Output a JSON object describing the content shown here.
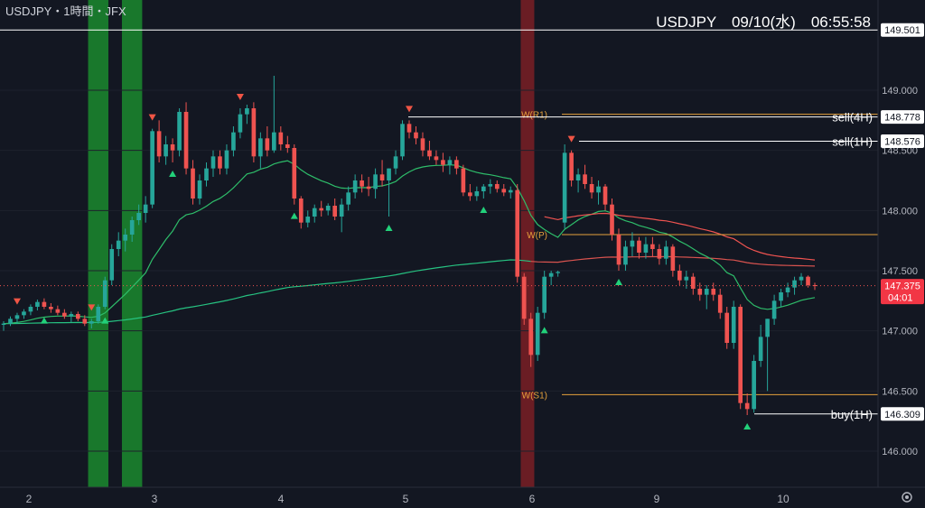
{
  "header": {
    "symbol_info": "USDJPY・1時間・JFX",
    "clock": "USDJPY　09/10(水)　06:55:58"
  },
  "colors": {
    "background": "#131722",
    "up": "#26a69a",
    "down": "#ef5350",
    "ema_fast": "#ef5350",
    "ema_mid": "#2ebd6a",
    "ema_slow": "#26c281",
    "ema_slow_red": "#d9534f",
    "pivot": "#e6a23c",
    "green_zone": "#1b8a2e",
    "red_zone": "#7a1f24",
    "axis_text": "#b2b5be",
    "label_bg": "#ffffff",
    "price_label_bg": "#f23645"
  },
  "chart_data": {
    "type": "candlestick",
    "y_axis": {
      "range": [
        145.7,
        149.75
      ],
      "ticks": [
        "149.000",
        "148.500",
        "148.000",
        "147.500",
        "147.000",
        "146.500",
        "146.000"
      ],
      "tick_values": [
        149.0,
        148.5,
        148.0,
        147.5,
        147.0,
        146.5,
        146.0
      ]
    },
    "x_axis": {
      "tick_labels": [
        "2",
        "3",
        "4",
        "5",
        "6",
        "9",
        "10"
      ]
    },
    "price_labels": [
      {
        "text": "149.501",
        "value": 149.501,
        "style": "white"
      },
      {
        "text": "148.778",
        "value": 148.778,
        "style": "white"
      },
      {
        "text": "148.576",
        "value": 148.576,
        "style": "white"
      },
      {
        "text": "147.375",
        "value": 147.375,
        "style": "red",
        "countdown": "04:01"
      },
      {
        "text": "146.309",
        "value": 146.309,
        "style": "white"
      }
    ],
    "level_labels": [
      {
        "text": "sell(4H)",
        "value": 148.778
      },
      {
        "text": "sell(1H)",
        "value": 148.576
      },
      {
        "text": "buy(1H)",
        "value": 146.309
      }
    ],
    "pivots": [
      {
        "text": "W(R1)",
        "value": 148.8
      },
      {
        "text": "W(P)",
        "value": 147.8
      },
      {
        "text": "W(S1)",
        "value": 146.47
      }
    ],
    "candles": [
      [
        147.05,
        147.08,
        147.0,
        147.06
      ],
      [
        147.06,
        147.12,
        147.04,
        147.1
      ],
      [
        147.1,
        147.15,
        147.06,
        147.13
      ],
      [
        147.13,
        147.18,
        147.1,
        147.16
      ],
      [
        147.16,
        147.22,
        147.13,
        147.2
      ],
      [
        147.2,
        147.26,
        147.17,
        147.24
      ],
      [
        147.24,
        147.27,
        147.18,
        147.2
      ],
      [
        147.2,
        147.23,
        147.15,
        147.18
      ],
      [
        147.18,
        147.21,
        147.13,
        147.15
      ],
      [
        147.15,
        147.18,
        147.1,
        147.12
      ],
      [
        147.12,
        147.16,
        147.07,
        147.14
      ],
      [
        147.14,
        147.16,
        147.08,
        147.1
      ],
      [
        147.1,
        147.13,
        147.04,
        147.06
      ],
      [
        147.06,
        147.1,
        147.02,
        147.08
      ],
      [
        147.08,
        147.22,
        147.06,
        147.2
      ],
      [
        147.2,
        147.45,
        147.18,
        147.42
      ],
      [
        147.42,
        147.72,
        147.38,
        147.68
      ],
      [
        147.68,
        147.82,
        147.62,
        147.75
      ],
      [
        147.75,
        147.85,
        147.66,
        147.8
      ],
      [
        147.8,
        147.95,
        147.74,
        147.92
      ],
      [
        147.92,
        148.05,
        147.88,
        147.98
      ],
      [
        147.98,
        148.12,
        147.9,
        148.05
      ],
      [
        148.05,
        148.68,
        148.02,
        148.66
      ],
      [
        148.66,
        148.75,
        148.4,
        148.45
      ],
      [
        148.45,
        148.62,
        148.38,
        148.55
      ],
      [
        148.55,
        148.6,
        148.4,
        148.5
      ],
      [
        148.5,
        148.85,
        148.45,
        148.82
      ],
      [
        148.82,
        148.9,
        148.3,
        148.35
      ],
      [
        148.35,
        148.42,
        148.05,
        148.1
      ],
      [
        148.1,
        148.3,
        148.05,
        148.25
      ],
      [
        148.25,
        148.4,
        148.2,
        148.35
      ],
      [
        148.35,
        148.5,
        148.28,
        148.45
      ],
      [
        148.45,
        148.5,
        148.3,
        148.35
      ],
      [
        148.35,
        148.55,
        148.3,
        148.5
      ],
      [
        148.5,
        148.7,
        148.45,
        148.65
      ],
      [
        148.65,
        148.85,
        148.6,
        148.8
      ],
      [
        148.8,
        148.88,
        148.72,
        148.85
      ],
      [
        148.85,
        148.9,
        148.4,
        148.45
      ],
      [
        148.45,
        148.65,
        148.35,
        148.6
      ],
      [
        148.6,
        148.7,
        148.45,
        148.5
      ],
      [
        148.5,
        149.12,
        148.48,
        148.65
      ],
      [
        148.65,
        148.7,
        148.5,
        148.55
      ],
      [
        148.55,
        148.62,
        148.48,
        148.52
      ],
      [
        148.52,
        148.55,
        148.05,
        148.1
      ],
      [
        148.1,
        148.12,
        147.85,
        147.9
      ],
      [
        147.9,
        148.0,
        147.86,
        147.95
      ],
      [
        147.95,
        148.05,
        147.9,
        148.02
      ],
      [
        148.02,
        148.08,
        147.95,
        148.0
      ],
      [
        148.0,
        148.06,
        147.96,
        148.04
      ],
      [
        148.04,
        148.1,
        147.92,
        147.95
      ],
      [
        147.95,
        148.1,
        147.82,
        148.05
      ],
      [
        148.05,
        148.2,
        148.0,
        148.15
      ],
      [
        148.15,
        148.3,
        148.1,
        148.25
      ],
      [
        148.25,
        148.3,
        148.15,
        148.2
      ],
      [
        148.2,
        148.28,
        148.12,
        148.18
      ],
      [
        148.18,
        148.35,
        148.1,
        148.3
      ],
      [
        148.3,
        148.42,
        148.2,
        148.25
      ],
      [
        148.25,
        148.35,
        147.95,
        148.35
      ],
      [
        148.35,
        148.5,
        148.3,
        148.45
      ],
      [
        148.45,
        148.75,
        148.42,
        148.72
      ],
      [
        148.72,
        148.75,
        148.6,
        148.65
      ],
      [
        148.65,
        148.7,
        148.55,
        148.6
      ],
      [
        148.6,
        148.65,
        148.45,
        148.5
      ],
      [
        148.5,
        148.58,
        148.42,
        148.45
      ],
      [
        148.45,
        148.5,
        148.38,
        148.42
      ],
      [
        148.42,
        148.48,
        148.32,
        148.38
      ],
      [
        148.38,
        148.45,
        148.3,
        148.42
      ],
      [
        148.42,
        148.45,
        148.3,
        148.35
      ],
      [
        148.35,
        148.38,
        148.12,
        148.15
      ],
      [
        148.15,
        148.22,
        148.08,
        148.12
      ],
      [
        148.12,
        148.2,
        148.08,
        148.16
      ],
      [
        148.16,
        148.22,
        148.1,
        148.2
      ],
      [
        148.2,
        148.26,
        148.14,
        148.22
      ],
      [
        148.22,
        148.25,
        148.15,
        148.18
      ],
      [
        148.18,
        148.22,
        148.12,
        148.15
      ],
      [
        148.15,
        148.2,
        148.1,
        148.17
      ],
      [
        148.17,
        148.22,
        147.4,
        147.45
      ],
      [
        147.45,
        147.48,
        147.05,
        147.1
      ],
      [
        147.1,
        147.15,
        146.7,
        146.8
      ],
      [
        146.8,
        147.2,
        146.75,
        147.15
      ],
      [
        147.15,
        147.5,
        147.1,
        147.45
      ],
      [
        147.45,
        147.5,
        147.38,
        147.48
      ],
      [
        147.48,
        147.5,
        147.45,
        147.49
      ],
      [
        147.9,
        148.55,
        147.85,
        148.48
      ],
      [
        148.48,
        148.5,
        148.2,
        148.25
      ],
      [
        148.25,
        148.35,
        148.15,
        148.3
      ],
      [
        148.3,
        148.38,
        148.18,
        148.22
      ],
      [
        148.22,
        148.28,
        148.1,
        148.15
      ],
      [
        148.15,
        148.25,
        148.05,
        148.2
      ],
      [
        148.2,
        148.22,
        148.0,
        148.05
      ],
      [
        148.05,
        148.1,
        147.75,
        147.8
      ],
      [
        147.8,
        147.85,
        147.5,
        147.55
      ],
      [
        147.55,
        147.75,
        147.5,
        147.7
      ],
      [
        147.7,
        147.82,
        147.62,
        147.75
      ],
      [
        147.75,
        147.78,
        147.6,
        147.65
      ],
      [
        147.65,
        147.78,
        147.6,
        147.72
      ],
      [
        147.72,
        147.78,
        147.62,
        147.68
      ],
      [
        147.68,
        147.72,
        147.55,
        147.6
      ],
      [
        147.6,
        147.75,
        147.55,
        147.7
      ],
      [
        147.7,
        147.72,
        147.45,
        147.5
      ],
      [
        147.5,
        147.55,
        147.38,
        147.42
      ],
      [
        147.42,
        147.5,
        147.35,
        147.45
      ],
      [
        147.45,
        147.48,
        147.3,
        147.35
      ],
      [
        147.35,
        147.4,
        147.25,
        147.3
      ],
      [
        147.3,
        147.38,
        147.18,
        147.35
      ],
      [
        147.35,
        147.4,
        147.25,
        147.3
      ],
      [
        147.3,
        147.35,
        147.1,
        147.15
      ],
      [
        147.15,
        147.2,
        146.85,
        146.9
      ],
      [
        146.9,
        147.25,
        146.85,
        147.2
      ],
      [
        147.2,
        147.22,
        146.35,
        146.4
      ],
      [
        146.4,
        146.48,
        146.3,
        146.35
      ],
      [
        146.35,
        146.8,
        146.32,
        146.75
      ],
      [
        146.75,
        147.05,
        146.7,
        146.95
      ],
      [
        146.95,
        147.1,
        146.5,
        147.1
      ],
      [
        147.1,
        147.3,
        147.05,
        147.25
      ],
      [
        147.25,
        147.35,
        147.2,
        147.32
      ],
      [
        147.32,
        147.4,
        147.28,
        147.36
      ],
      [
        147.36,
        147.45,
        147.3,
        147.42
      ],
      [
        147.42,
        147.48,
        147.38,
        147.45
      ],
      [
        147.45,
        147.46,
        147.36,
        147.38
      ],
      [
        147.38,
        147.4,
        147.34,
        147.375
      ]
    ],
    "arrows_up": [
      6,
      15,
      25,
      43,
      57,
      71,
      80,
      91,
      110
    ],
    "arrows_down": [
      2,
      13,
      22,
      35,
      60,
      84
    ],
    "zones": [
      {
        "kind": "green",
        "start": 13,
        "end": 15
      },
      {
        "kind": "green",
        "start": 18,
        "end": 20
      },
      {
        "kind": "red",
        "start": 77,
        "end": 78
      }
    ]
  }
}
